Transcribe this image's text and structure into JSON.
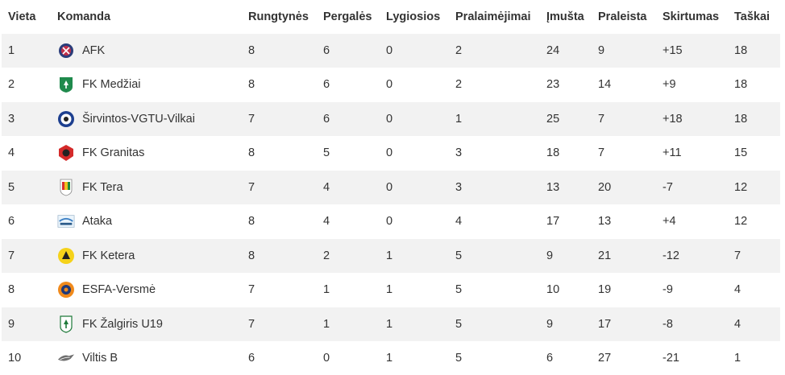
{
  "table": {
    "headers": {
      "pos": "Vieta",
      "team": "Komanda",
      "played": "Rungtynės",
      "won": "Pergalės",
      "drawn": "Lygiosios",
      "lost": "Pralaimėjimai",
      "gf": "Įmušta",
      "ga": "Praleista",
      "diff": "Skirtumas",
      "pts": "Taškai"
    },
    "rows": [
      {
        "pos": "1",
        "team": "AFK",
        "icon": "afk-crest-icon",
        "played": "8",
        "won": "6",
        "drawn": "0",
        "lost": "2",
        "gf": "24",
        "ga": "9",
        "diff": "+15",
        "pts": "18"
      },
      {
        "pos": "2",
        "team": "FK Medžiai",
        "icon": "medziai-crest-icon",
        "played": "8",
        "won": "6",
        "drawn": "0",
        "lost": "2",
        "gf": "23",
        "ga": "14",
        "diff": "+9",
        "pts": "18"
      },
      {
        "pos": "3",
        "team": "Širvintos-VGTU-Vilkai",
        "icon": "vilkai-crest-icon",
        "played": "7",
        "won": "6",
        "drawn": "0",
        "lost": "1",
        "gf": "25",
        "ga": "7",
        "diff": "+18",
        "pts": "18"
      },
      {
        "pos": "4",
        "team": "FK Granitas",
        "icon": "granitas-crest-icon",
        "played": "8",
        "won": "5",
        "drawn": "0",
        "lost": "3",
        "gf": "18",
        "ga": "7",
        "diff": "+11",
        "pts": "15"
      },
      {
        "pos": "5",
        "team": "FK Tera",
        "icon": "tera-crest-icon",
        "played": "7",
        "won": "4",
        "drawn": "0",
        "lost": "3",
        "gf": "13",
        "ga": "20",
        "diff": "-7",
        "pts": "12"
      },
      {
        "pos": "6",
        "team": "Ataka",
        "icon": "ataka-crest-icon",
        "played": "8",
        "won": "4",
        "drawn": "0",
        "lost": "4",
        "gf": "17",
        "ga": "13",
        "diff": "+4",
        "pts": "12"
      },
      {
        "pos": "7",
        "team": "FK Ketera",
        "icon": "ketera-crest-icon",
        "played": "8",
        "won": "2",
        "drawn": "1",
        "lost": "5",
        "gf": "9",
        "ga": "21",
        "diff": "-12",
        "pts": "7"
      },
      {
        "pos": "8",
        "team": "ESFA-Versmė",
        "icon": "esfa-crest-icon",
        "played": "7",
        "won": "1",
        "drawn": "1",
        "lost": "5",
        "gf": "10",
        "ga": "19",
        "diff": "-9",
        "pts": "4"
      },
      {
        "pos": "9",
        "team": "FK Žalgiris U19",
        "icon": "zalgiris-crest-icon",
        "played": "7",
        "won": "1",
        "drawn": "1",
        "lost": "5",
        "gf": "9",
        "ga": "17",
        "diff": "-8",
        "pts": "4"
      },
      {
        "pos": "10",
        "team": "Viltis B",
        "icon": "viltis-crest-icon",
        "played": "6",
        "won": "0",
        "drawn": "1",
        "lost": "5",
        "gf": "6",
        "ga": "27",
        "diff": "-21",
        "pts": "1"
      }
    ]
  }
}
